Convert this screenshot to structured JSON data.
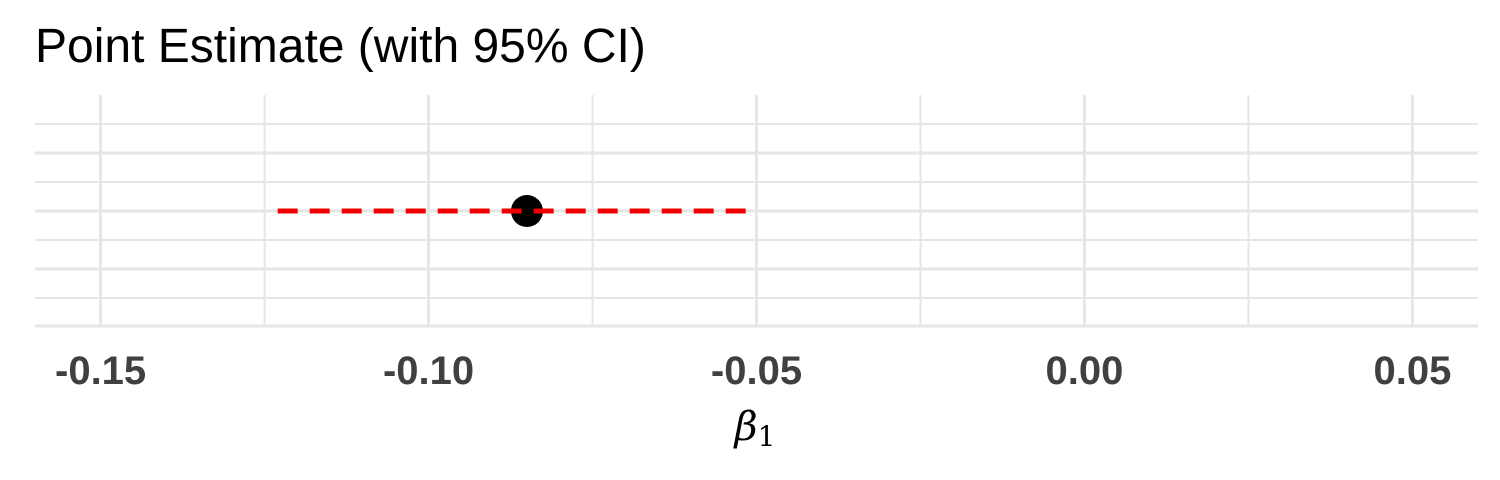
{
  "chart_data": {
    "type": "scatter",
    "title": "Point Estimate (with 95% CI)",
    "xlabel": "β",
    "xlabel_subscript": "1",
    "ylabel": "",
    "xlim": [
      -0.16,
      0.06
    ],
    "x_ticks": [
      -0.15,
      -0.1,
      -0.05,
      0.0,
      0.05
    ],
    "x_tick_labels": [
      "-0.15",
      "-0.10",
      "-0.05",
      "0.00",
      "0.05"
    ],
    "grid": true,
    "legend": "none",
    "point": {
      "x": -0.085,
      "ci_low": -0.123,
      "ci_high": -0.05
    },
    "colors": {
      "point": "#000000",
      "ci": "#ee0000",
      "grid": "#e6e6e6"
    }
  }
}
